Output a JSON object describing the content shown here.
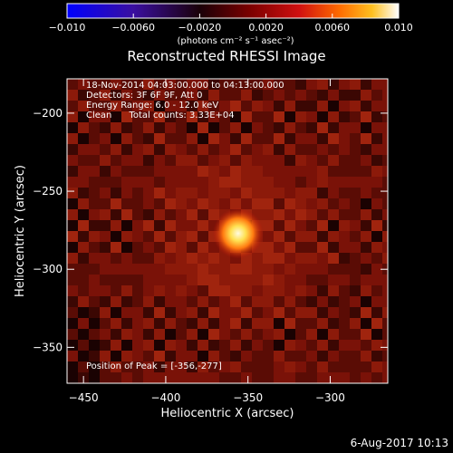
{
  "chart_data": {
    "type": "heatmap",
    "title": "Reconstructed RHESSI Image",
    "xlabel": "Heliocentric X (arcsec)",
    "ylabel": "Heliocentric Y (arcsec)",
    "xlim": [
      -460,
      -265
    ],
    "ylim": [
      -373,
      -178
    ],
    "x_ticks": [
      {
        "value": -450,
        "label": "−450"
      },
      {
        "value": -400,
        "label": "−400"
      },
      {
        "value": -350,
        "label": "−350"
      },
      {
        "value": -300,
        "label": "−300"
      }
    ],
    "y_ticks": [
      {
        "value": -200,
        "label": "−200"
      },
      {
        "value": -250,
        "label": "−250"
      },
      {
        "value": -300,
        "label": "−300"
      },
      {
        "value": -350,
        "label": "−350"
      }
    ],
    "colorbar": {
      "range": [
        -0.01,
        0.01
      ],
      "ticks": [
        {
          "value": -0.01,
          "label": "−0.010"
        },
        {
          "value": -0.006,
          "label": "−0.0060"
        },
        {
          "value": -0.002,
          "label": "−0.0020"
        },
        {
          "value": 0.002,
          "label": "0.0020"
        },
        {
          "value": 0.006,
          "label": "0.0060"
        },
        {
          "value": 0.01,
          "label": "0.010"
        }
      ],
      "unit_label": "(photons cm⁻² s⁻¹ asec⁻²)",
      "colors": [
        "#0000ff",
        "#3a0fa0",
        "#1a0008",
        "#7a0000",
        "#d01010",
        "#ff6a00",
        "#ffc020",
        "#ffffff"
      ]
    },
    "peak": {
      "x": -356,
      "y": -277
    },
    "annotations": [
      "18-Nov-2014 04:03:00.000 to 04:13:00.000",
      "Detectors: 3F 6F 9F, Att 0",
      "Energy Range: 6.0 - 12.0 keV",
      "Clean      Total counts: 3.33E+04"
    ],
    "peak_label": "Position of Peak = [-356,-277]",
    "grid": false,
    "legend": "none"
  },
  "footer": {
    "date": "6-Aug-2017 10:13"
  }
}
